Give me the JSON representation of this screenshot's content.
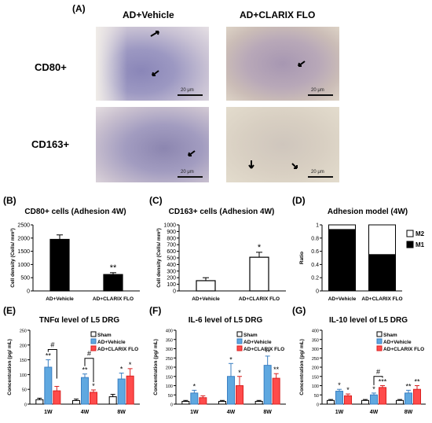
{
  "panelA": {
    "label": "(A)",
    "col_headers": [
      "AD+Vehicle",
      "AD+CLARIX FLO"
    ],
    "row_labels": [
      "CD80+",
      "CD163+"
    ],
    "scale_text": "20 μm"
  },
  "colors": {
    "sham": "#ffffff",
    "vehicle": "#5fa8e0",
    "clarix": "#ff4b4b",
    "m1": "#000000",
    "m2": "#ffffff"
  },
  "chart_data": [
    {
      "id": "B",
      "panel_label": "(B)",
      "type": "bar",
      "title": "CD80+ cells (Adhesion 4W)",
      "ylabel": "Cell density (Cells/ mm²)",
      "categories": [
        "AD+Vehicle",
        "AD+CLARIX FLO"
      ],
      "values": [
        1950,
        620
      ],
      "errors": [
        170,
        70
      ],
      "ylim": [
        0,
        2500
      ],
      "yticks": [
        0,
        500,
        1000,
        1500,
        2000,
        2500
      ],
      "fill": "#000000",
      "sig": [
        "",
        "**"
      ]
    },
    {
      "id": "C",
      "panel_label": "(C)",
      "type": "bar",
      "title": "CD163+ cells (Adhesion 4W)",
      "ylabel": "Cell density (Cells/ mm²)",
      "categories": [
        "AD+Vehicle",
        "AD+CLARIX FLO"
      ],
      "values": [
        155,
        510
      ],
      "errors": [
        45,
        75
      ],
      "ylim": [
        0,
        1000
      ],
      "yticks": [
        0,
        100,
        200,
        300,
        400,
        500,
        600,
        700,
        800,
        900,
        1000
      ],
      "fill": "#ffffff",
      "sig": [
        "",
        "*"
      ]
    },
    {
      "id": "D",
      "panel_label": "(D)",
      "type": "bar",
      "title": "Adhesion model (4W)",
      "ylabel": "Ratio",
      "categories": [
        "AD+Vehicle",
        "AD+CLARIX FLO"
      ],
      "series": [
        {
          "name": "M1",
          "values": [
            0.93,
            0.55
          ]
        },
        {
          "name": "M2",
          "values": [
            0.07,
            0.45
          ]
        }
      ],
      "ylim": [
        0,
        1
      ],
      "yticks": [
        0,
        0.2,
        0.4,
        0.6,
        0.8,
        1
      ]
    },
    {
      "id": "E",
      "panel_label": "(E)",
      "type": "bar",
      "title": "TNFα level of L5 DRG",
      "ylabel": "Concentration (pg/ mL)",
      "categories": [
        "1W",
        "4W",
        "8W"
      ],
      "series": [
        {
          "name": "Sham",
          "values": [
            15,
            12,
            25
          ],
          "errors": [
            5,
            5,
            8
          ]
        },
        {
          "name": "AD+Vehicle",
          "values": [
            125,
            90,
            85
          ],
          "errors": [
            25,
            12,
            20
          ]
        },
        {
          "name": "AD+CLARIX FLO",
          "values": [
            45,
            40,
            95
          ],
          "errors": [
            15,
            8,
            25
          ]
        }
      ],
      "sig": [
        [
          "",
          "**",
          ""
        ],
        [
          "",
          "**",
          "*"
        ],
        [
          "",
          "*",
          "*"
        ]
      ],
      "brackets": [
        {
          "group": 0,
          "label": "#",
          "top": 185
        },
        {
          "group": 1,
          "label": "#",
          "top": 155
        }
      ],
      "ylim": [
        0,
        250
      ],
      "yticks": [
        0,
        50,
        100,
        150,
        200,
        250
      ]
    },
    {
      "id": "F",
      "panel_label": "(F)",
      "type": "bar",
      "title": "IL-6 level of L5 DRG",
      "ylabel": "Concentration (pg/ mL)",
      "categories": [
        "1W",
        "4W",
        "8W"
      ],
      "series": [
        {
          "name": "Sham",
          "values": [
            15,
            15,
            15
          ],
          "errors": [
            5,
            5,
            5
          ]
        },
        {
          "name": "AD+Vehicle",
          "values": [
            60,
            150,
            210
          ],
          "errors": [
            15,
            70,
            50
          ]
        },
        {
          "name": "AD+CLARIX FLO",
          "values": [
            35,
            100,
            140
          ],
          "errors": [
            10,
            50,
            25
          ]
        }
      ],
      "sig": [
        [
          "",
          "*",
          ""
        ],
        [
          "",
          "*",
          "*"
        ],
        [
          "",
          "**",
          "**"
        ]
      ],
      "brackets": [],
      "ylim": [
        0,
        400
      ],
      "yticks": [
        0,
        50,
        100,
        150,
        200,
        250,
        300,
        350,
        400
      ]
    },
    {
      "id": "G",
      "panel_label": "(G)",
      "type": "bar",
      "title": "IL-10 level of L5 DRG",
      "ylabel": "Concentration (pg/ mL)",
      "categories": [
        "1W",
        "4W",
        "8W"
      ],
      "series": [
        {
          "name": "Sham",
          "values": [
            20,
            20,
            20
          ],
          "errors": [
            5,
            5,
            5
          ]
        },
        {
          "name": "AD+Vehicle",
          "values": [
            70,
            50,
            60
          ],
          "errors": [
            10,
            10,
            15
          ]
        },
        {
          "name": "AD+CLARIX FLO",
          "values": [
            45,
            90,
            80
          ],
          "errors": [
            10,
            10,
            20
          ]
        }
      ],
      "sig": [
        [
          "",
          "*",
          "*"
        ],
        [
          "",
          "*",
          "***"
        ],
        [
          "",
          "**",
          "**"
        ]
      ],
      "brackets": [
        {
          "group": 1,
          "label": "#",
          "top": 150
        }
      ],
      "ylim": [
        0,
        400
      ],
      "yticks": [
        0,
        50,
        100,
        150,
        200,
        250,
        300,
        350,
        400
      ]
    }
  ]
}
